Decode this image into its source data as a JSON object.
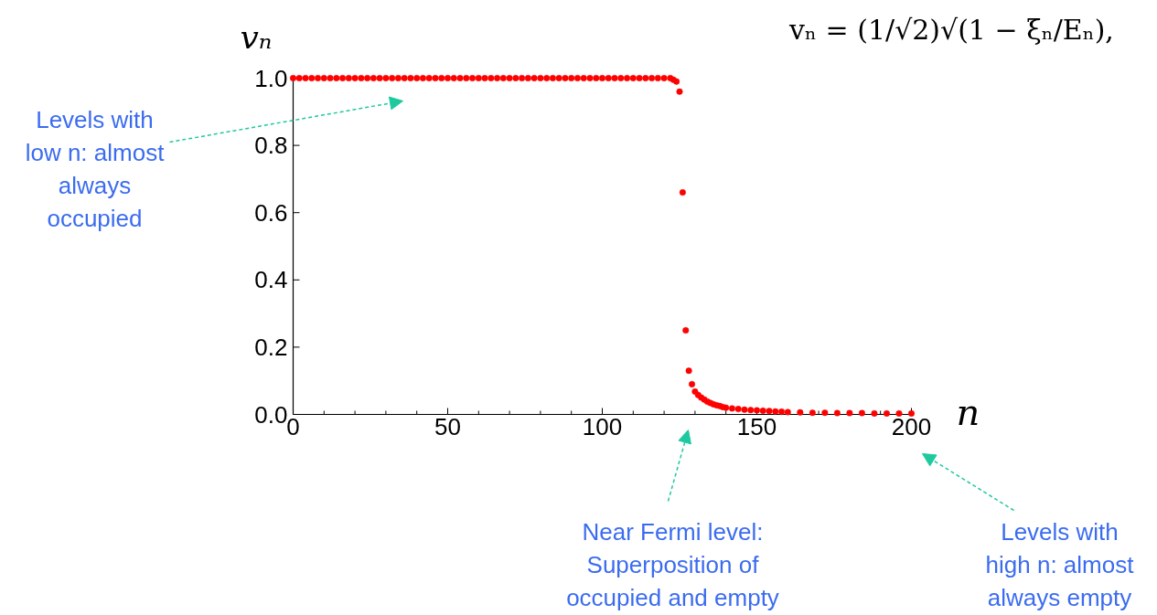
{
  "chart_data": {
    "type": "scatter",
    "xlabel": "n",
    "ylabel": "vₙ",
    "x": [
      0,
      2,
      4,
      6,
      8,
      10,
      12,
      14,
      16,
      18,
      20,
      22,
      24,
      26,
      28,
      30,
      32,
      34,
      36,
      38,
      40,
      42,
      44,
      46,
      48,
      50,
      52,
      54,
      56,
      58,
      60,
      62,
      64,
      66,
      68,
      70,
      72,
      74,
      76,
      78,
      80,
      82,
      84,
      86,
      88,
      90,
      92,
      94,
      96,
      98,
      100,
      102,
      104,
      106,
      108,
      110,
      112,
      114,
      116,
      118,
      120,
      122,
      123,
      124,
      125,
      126,
      127,
      128,
      129,
      130,
      131,
      132,
      133,
      134,
      135,
      136,
      137,
      138,
      139,
      140,
      142,
      144,
      146,
      148,
      150,
      152,
      154,
      156,
      158,
      160,
      164,
      168,
      172,
      176,
      180,
      184,
      188,
      192,
      196,
      200
    ],
    "series": [
      {
        "color": "#ff0000",
        "values": [
          1,
          1,
          1,
          1,
          1,
          1,
          1,
          1,
          1,
          1,
          1,
          1,
          1,
          1,
          1,
          1,
          1,
          1,
          1,
          1,
          1,
          1,
          1,
          1,
          1,
          1,
          1,
          1,
          1,
          1,
          1,
          1,
          1,
          1,
          1,
          1,
          1,
          1,
          1,
          1,
          1,
          1,
          1,
          1,
          1,
          1,
          1,
          1,
          1,
          1,
          1,
          1,
          1,
          1,
          1,
          1,
          1,
          1,
          1,
          1,
          1,
          1,
          0.995,
          0.99,
          0.96,
          0.66,
          0.25,
          0.13,
          0.09,
          0.068,
          0.058,
          0.05,
          0.044,
          0.038,
          0.034,
          0.03,
          0.027,
          0.025,
          0.022,
          0.02,
          0.018,
          0.016,
          0.014,
          0.013,
          0.012,
          0.011,
          0.01,
          0.009,
          0.008,
          0.007,
          0.006,
          0.005,
          0.005,
          0.004,
          0.004,
          0.004,
          0.003,
          0.003,
          0.003,
          0.003
        ]
      }
    ],
    "marker": "circle",
    "xlim": [
      0,
      200
    ],
    "ylim": [
      0,
      1
    ],
    "xticks": [
      0,
      {
        "value": 10,
        "label": null
      },
      {
        "value": 20,
        "label": null
      },
      {
        "value": 30,
        "label": null
      },
      {
        "value": 40,
        "label": null
      },
      50,
      {
        "value": 60,
        "label": null
      },
      {
        "value": 70,
        "label": null
      },
      {
        "value": 80,
        "label": null
      },
      {
        "value": 90,
        "label": null
      },
      100,
      {
        "value": 110,
        "label": null
      },
      {
        "value": 120,
        "label": null
      },
      {
        "value": 130,
        "label": null
      },
      {
        "value": 140,
        "label": null
      },
      150,
      {
        "value": 160,
        "label": null
      },
      {
        "value": 170,
        "label": null
      },
      {
        "value": 180,
        "label": null
      },
      {
        "value": 190,
        "label": null
      },
      200
    ],
    "yticks": [
      {
        "value": 0,
        "label": "0.0"
      },
      {
        "value": 0.2,
        "label": "0.2"
      },
      {
        "value": 0.4,
        "label": "0.4"
      },
      {
        "value": 0.6,
        "label": "0.6"
      },
      {
        "value": 0.8,
        "label": "0.8"
      },
      {
        "value": 1,
        "label": "1.0"
      }
    ],
    "annotations": [
      "vₙ = (1/√2)√(1 − ξₙ/Eₙ),",
      "Levels with\nlow n: almost\nalways\noccupied",
      "Near Fermi level:\nSuperposition of\noccupied and empty",
      "Levels with\nhigh n: almost\nalways empty"
    ]
  }
}
